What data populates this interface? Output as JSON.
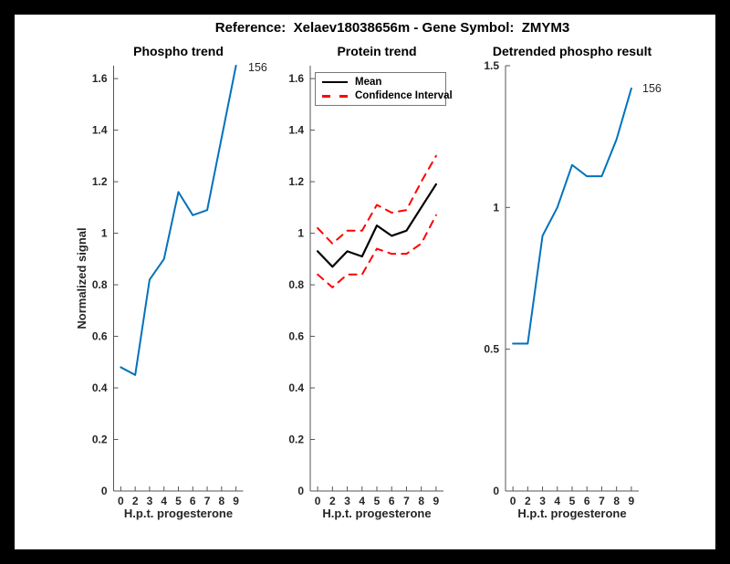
{
  "frame": {
    "bg": "#000000",
    "figure_bg": "#ffffff"
  },
  "figure_title": "Reference:  Xelaev18038656m - Gene Symbol:  ZMYM3",
  "colors": {
    "line_blue": "#0072BD",
    "mean_black": "#000000",
    "ci_red": "#FF0000",
    "axis": "#555555",
    "text": "#262626"
  },
  "chart_data": [
    {
      "type": "line",
      "title": "Phospho trend",
      "xlabel": "H.p.t. progesterone",
      "ylabel": "Normalized signal",
      "categories": [
        "0",
        "2",
        "3",
        "4",
        "5",
        "6",
        "7",
        "8",
        "9"
      ],
      "ylim": [
        0,
        1.65
      ],
      "yticks": [
        "0",
        "0.2",
        "0.4",
        "0.6",
        "0.8",
        "1",
        "1.2",
        "1.4",
        "1.6"
      ],
      "grid": false,
      "series": [
        {
          "name": "phospho-signal",
          "color": "#0072BD",
          "dash": "solid",
          "width": 2,
          "values": [
            0.48,
            0.45,
            0.82,
            0.9,
            1.16,
            1.07,
            1.09,
            1.37,
            1.65
          ]
        }
      ],
      "annotation": "156"
    },
    {
      "type": "line",
      "title": "Protein trend",
      "xlabel": "H.p.t. progesterone",
      "ylabel": "",
      "categories": [
        "0",
        "2",
        "3",
        "4",
        "5",
        "6",
        "7",
        "8",
        "9"
      ],
      "ylim": [
        0,
        1.65
      ],
      "yticks": [
        "0",
        "0.2",
        "0.4",
        "0.6",
        "0.8",
        "1",
        "1.2",
        "1.4",
        "1.6"
      ],
      "grid": false,
      "series": [
        {
          "name": "mean",
          "color": "#000000",
          "dash": "solid",
          "width": 2.2,
          "values": [
            0.93,
            0.87,
            0.93,
            0.91,
            1.03,
            0.99,
            1.01,
            1.1,
            1.19
          ]
        },
        {
          "name": "confidence-interval-upper",
          "color": "#FF0000",
          "dash": "dashed",
          "width": 2,
          "values": [
            1.02,
            0.96,
            1.01,
            1.01,
            1.11,
            1.08,
            1.09,
            1.2,
            1.3
          ]
        },
        {
          "name": "confidence-interval-lower",
          "color": "#FF0000",
          "dash": "dashed",
          "width": 2,
          "values": [
            0.84,
            0.79,
            0.84,
            0.84,
            0.94,
            0.92,
            0.92,
            0.96,
            1.07
          ]
        }
      ],
      "legend": {
        "position": "top-left",
        "entries": [
          {
            "label": "Mean",
            "style": "solid-black"
          },
          {
            "label": "Confidence Interval",
            "style": "dashed-red"
          }
        ]
      }
    },
    {
      "type": "line",
      "title": "Detrended phospho result",
      "xlabel": "H.p.t. progesterone",
      "ylabel": "",
      "categories": [
        "0",
        "2",
        "3",
        "4",
        "5",
        "6",
        "7",
        "8",
        "9"
      ],
      "ylim": [
        0,
        1.5
      ],
      "yticks": [
        "0",
        "0.5",
        "1",
        "1.5"
      ],
      "grid": false,
      "series": [
        {
          "name": "detrended-phospho-signal",
          "color": "#0072BD",
          "dash": "solid",
          "width": 2,
          "values": [
            0.52,
            0.52,
            0.9,
            1.0,
            1.15,
            1.11,
            1.11,
            1.24,
            1.42
          ]
        }
      ],
      "annotation": "156"
    }
  ]
}
